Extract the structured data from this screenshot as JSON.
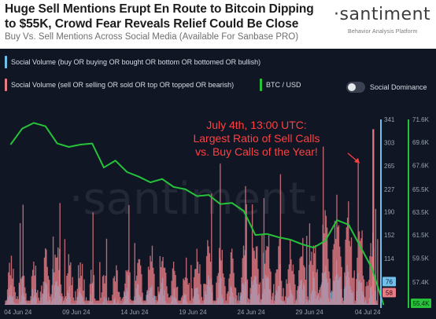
{
  "header": {
    "title_line1": "Huge Sell Mentions Erupt En Route to Bitcoin Dipping",
    "title_line2": "to $55K, Crowd Fear Reveals Relief Could Be Close",
    "subtitle": "Buy Vs. Sell Mentions Across Social Media (Available For Sanbase PRO)",
    "brand": "·santiment",
    "brand_tagline": "Behavior Analysis Platform"
  },
  "legend": {
    "buy": "Social Volume (buy OR buying OR bought OR bottom OR bottomed OR bullish)",
    "sell": "Social Volume (sell OR selling OR sold OR top OR topped OR bearish)",
    "btc": "BTC / USD",
    "toggle_label": "Social Dominance"
  },
  "annotation": {
    "line1": "July 4th, 13:00 UTC:",
    "line2": "Largest Ratio of Sell Calls",
    "line3": "vs. Buy Calls of the Year!"
  },
  "watermark": "·santiment·",
  "colors": {
    "background": "#101624",
    "buy": "#72bfe9",
    "sell": "#e77c85",
    "btc": "#26c23a",
    "annotation": "#ff4040",
    "axis_text": "#9aa3b2"
  },
  "chart_data": {
    "type": "line",
    "time_range": [
      "2024-06-03",
      "2024-07-05"
    ],
    "x_ticks": [
      "04 Jun 24",
      "09 Jun 24",
      "14 Jun 24",
      "19 Jun 24",
      "24 Jun 24",
      "29 Jun 24",
      "04 Jul 24"
    ],
    "left_axis": {
      "ticks": [
        76,
        114,
        152,
        190,
        227,
        265,
        303,
        341
      ],
      "range": [
        38,
        341
      ],
      "last_value": "76"
    },
    "right_axis": {
      "ticks": [
        "57.4K",
        "59.5K",
        "61.5K",
        "63.5K",
        "65.5K",
        "67.6K",
        "69.6K",
        "71.6K"
      ],
      "range": [
        55400,
        71600
      ],
      "last_value": "55.4K"
    },
    "sell_last_value": "58",
    "series": [
      {
        "name": "Social Volume (sell OR selling OR sold OR top OR topped OR bearish)",
        "axis": "left",
        "style": "bars",
        "base": [
          95,
          85,
          90,
          100,
          110,
          105,
          95,
          80,
          78,
          82,
          92,
          100,
          115,
          110,
          95,
          90,
          105,
          118,
          112,
          100,
          108,
          120,
          128,
          115,
          110,
          118,
          125,
          150,
          175,
          160,
          135,
          125
        ]
      },
      {
        "name": "Social Volume (buy OR buying OR bought OR bottom OR bottomed OR bullish)",
        "axis": "left",
        "style": "bars",
        "base": [
          55,
          50,
          55,
          65,
          70,
          60,
          55,
          45,
          40,
          45,
          55,
          60,
          70,
          65,
          55,
          50,
          60,
          70,
          68,
          60,
          62,
          70,
          75,
          66,
          62,
          70,
          72,
          90,
          95,
          85,
          70,
          60
        ]
      },
      {
        "name": "BTC / USD",
        "axis": "right",
        "style": "line",
        "x": [
          "2024-06-03",
          "2024-06-04",
          "2024-06-05",
          "2024-06-06",
          "2024-06-07",
          "2024-06-08",
          "2024-06-09",
          "2024-06-10",
          "2024-06-11",
          "2024-06-12",
          "2024-06-13",
          "2024-06-14",
          "2024-06-15",
          "2024-06-16",
          "2024-06-17",
          "2024-06-18",
          "2024-06-19",
          "2024-06-20",
          "2024-06-21",
          "2024-06-22",
          "2024-06-23",
          "2024-06-24",
          "2024-06-25",
          "2024-06-26",
          "2024-06-27",
          "2024-06-28",
          "2024-06-29",
          "2024-06-30",
          "2024-07-01",
          "2024-07-02",
          "2024-07-03",
          "2024-07-04",
          "2024-07-05"
        ],
        "values": [
          69400,
          70800,
          71300,
          71000,
          69500,
          69200,
          69400,
          69500,
          67400,
          68000,
          67000,
          66600,
          66100,
          66400,
          65700,
          65500,
          64900,
          65000,
          64200,
          64300,
          63600,
          61500,
          61600,
          61300,
          61100,
          60700,
          60400,
          61000,
          62800,
          62400,
          60500,
          58600,
          55400
        ]
      }
    ]
  }
}
